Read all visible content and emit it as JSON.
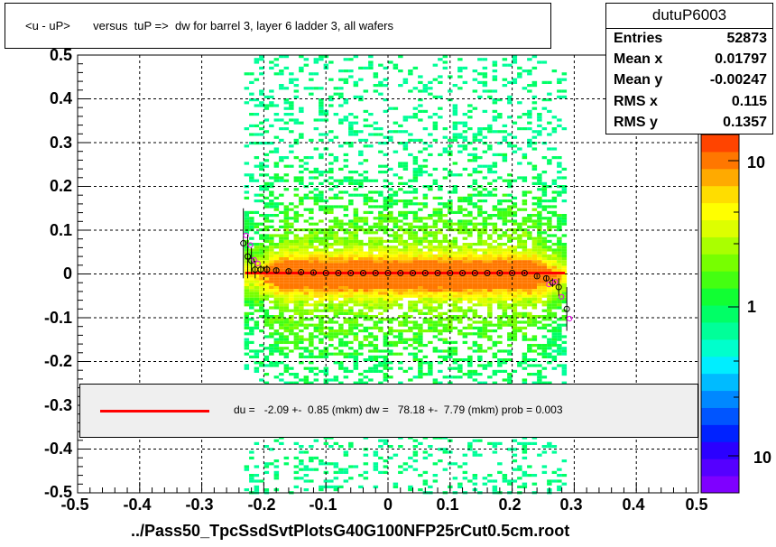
{
  "chart_data": {
    "type": "heatmap",
    "title": "<u - uP>       versus  tuP =>  dw for barrel 3, layer 6 ladder 3, all wafers",
    "xlabel": "../Pass50_TpcSsdSvtPlotsG40G100NFP25rCut0.5cm.root",
    "ylabel": "",
    "xlim": [
      -0.5,
      0.5
    ],
    "ylim": [
      -0.5,
      0.5
    ],
    "x_ticks": [
      "-0.5",
      "-0.4",
      "-0.3",
      "-0.2",
      "-0.1",
      "0",
      "0.1",
      "0.2",
      "0.3",
      "0.4",
      "0.5"
    ],
    "y_ticks": [
      "0.5",
      "0.4",
      "0.3",
      "0.2",
      "0.1",
      "0",
      "-0.1",
      "-0.2",
      "-0.3",
      "-0.4",
      "-0.5"
    ],
    "z_ticks": [
      "10",
      "1",
      "10"
    ],
    "grid": true,
    "occupied_x_range": [
      -0.22,
      0.28
    ],
    "core_y_range": [
      -0.04,
      0.04
    ],
    "profile_points": [
      {
        "x": -0.233,
        "y": 0.07,
        "err": 0.08
      },
      {
        "x": -0.226,
        "y": 0.04,
        "err": 0.05
      },
      {
        "x": -0.22,
        "y": 0.03,
        "err": 0.03
      },
      {
        "x": -0.214,
        "y": 0.01,
        "err": 0.02
      },
      {
        "x": -0.205,
        "y": 0.01,
        "err": 0.01
      },
      {
        "x": -0.195,
        "y": 0.01,
        "err": 0.01
      },
      {
        "x": -0.18,
        "y": 0.008,
        "err": 0.005
      },
      {
        "x": -0.16,
        "y": 0.006,
        "err": 0.004
      },
      {
        "x": -0.14,
        "y": 0.004,
        "err": 0.003
      },
      {
        "x": -0.12,
        "y": 0.003,
        "err": 0.003
      },
      {
        "x": -0.1,
        "y": 0.002,
        "err": 0.002
      },
      {
        "x": -0.08,
        "y": 0.002,
        "err": 0.002
      },
      {
        "x": -0.06,
        "y": 0.002,
        "err": 0.002
      },
      {
        "x": -0.04,
        "y": 0.002,
        "err": 0.002
      },
      {
        "x": -0.02,
        "y": 0.002,
        "err": 0.002
      },
      {
        "x": 0.0,
        "y": 0.002,
        "err": 0.002
      },
      {
        "x": 0.02,
        "y": 0.002,
        "err": 0.002
      },
      {
        "x": 0.04,
        "y": 0.002,
        "err": 0.002
      },
      {
        "x": 0.06,
        "y": 0.002,
        "err": 0.002
      },
      {
        "x": 0.08,
        "y": 0.002,
        "err": 0.002
      },
      {
        "x": 0.1,
        "y": 0.002,
        "err": 0.002
      },
      {
        "x": 0.12,
        "y": 0.002,
        "err": 0.002
      },
      {
        "x": 0.14,
        "y": 0.002,
        "err": 0.002
      },
      {
        "x": 0.16,
        "y": 0.002,
        "err": 0.002
      },
      {
        "x": 0.18,
        "y": 0.002,
        "err": 0.003
      },
      {
        "x": 0.2,
        "y": 0.002,
        "err": 0.003
      },
      {
        "x": 0.22,
        "y": 0.002,
        "err": 0.003
      },
      {
        "x": 0.24,
        "y": -0.005,
        "err": 0.004
      },
      {
        "x": 0.255,
        "y": -0.01,
        "err": 0.006
      },
      {
        "x": 0.265,
        "y": -0.02,
        "err": 0.01
      },
      {
        "x": 0.275,
        "y": -0.03,
        "err": 0.02
      },
      {
        "x": 0.288,
        "y": -0.08,
        "err": 0.05
      }
    ],
    "fit_line": {
      "x": [
        -0.23,
        0.285
      ],
      "y": [
        0.002,
        0.002
      ],
      "color": "#ff0000"
    }
  },
  "stats": {
    "name": "dutuP6003",
    "rows": [
      {
        "label": "Entries",
        "value": "52873"
      },
      {
        "label": "Mean x",
        "value": "0.01797"
      },
      {
        "label": "Mean y",
        "value": "-0.00247"
      },
      {
        "label": "RMS x",
        "value": "0.115"
      },
      {
        "label": "RMS y",
        "value": "0.1357"
      }
    ]
  },
  "fit": {
    "text": "du =   -2.09 +-  0.85 (mkm) dw =   78.18 +-  7.79 (mkm) prob = 0.003"
  },
  "colors": {
    "frame_bg": "#ffffff",
    "grid": "#000000",
    "fit_line": "#ff0000",
    "legend_bg": "#efefef",
    "palette": [
      "#7f00ff",
      "#5500ff",
      "#2b00ff",
      "#0022ff",
      "#0055ff",
      "#0088ff",
      "#00bbff",
      "#00eeff",
      "#00ffcc",
      "#00ff99",
      "#00ff66",
      "#11ff33",
      "#44ff11",
      "#77ff00",
      "#aaff00",
      "#ddff00",
      "#ffff00",
      "#ffdd00",
      "#ffaa00",
      "#ff7700",
      "#ff4400"
    ]
  }
}
